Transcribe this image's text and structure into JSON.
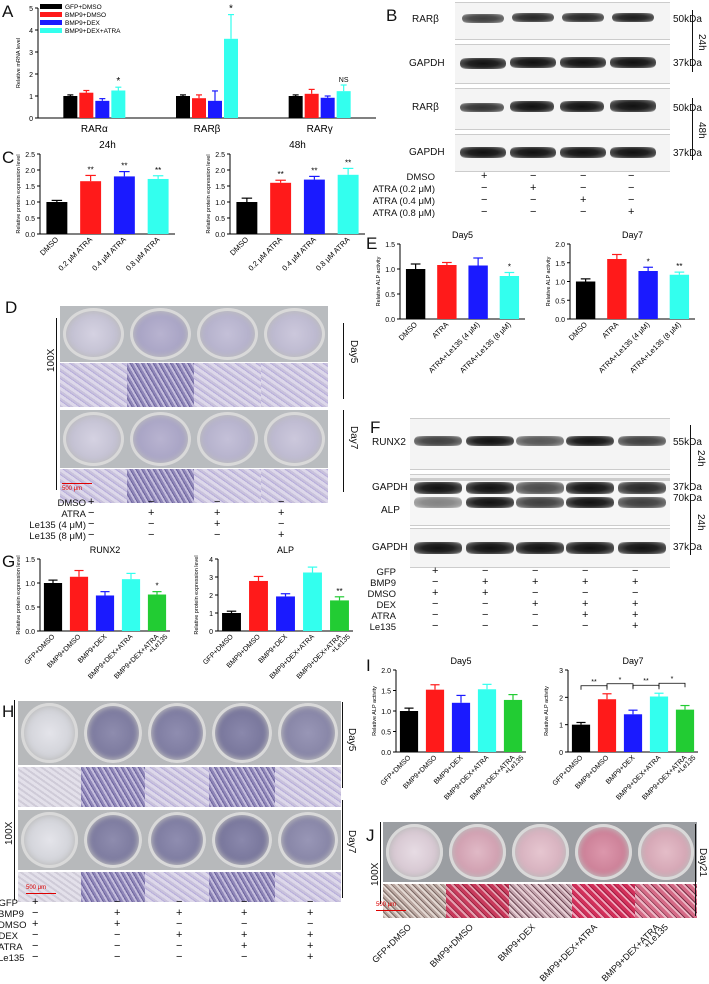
{
  "panels": {
    "A": "A",
    "B": "B",
    "C": "C",
    "D": "D",
    "E": "E",
    "F": "F",
    "G": "G",
    "H": "H",
    "I": "I",
    "J": "J"
  },
  "colors": {
    "black": "#000000",
    "red": "#ff1a1a",
    "blue": "#1a1aff",
    "cyan": "#33ffee",
    "green": "#22cc33"
  },
  "panelA": {
    "ylabel": "Relative mRNA level",
    "legend": [
      "GFP+DMSO",
      "BMP9+DMSO",
      "BMP9+DEX",
      "BMP9+DEX+ATRA"
    ],
    "chart_data": {
      "type": "bar",
      "categories": [
        "RARα",
        "RARβ",
        "RARγ"
      ],
      "ylim": [
        0,
        5
      ],
      "yticks": [
        "0",
        "1",
        "2",
        "3",
        "4",
        "5"
      ],
      "series": [
        {
          "name": "GFP+DMSO",
          "values": [
            1.0,
            1.0,
            1.0
          ],
          "err": [
            0.05,
            0.05,
            0.05
          ]
        },
        {
          "name": "BMP9+DMSO",
          "values": [
            1.15,
            0.9,
            1.1
          ],
          "err": [
            0.1,
            0.15,
            0.2
          ]
        },
        {
          "name": "BMP9+DEX",
          "values": [
            0.78,
            0.78,
            0.92
          ],
          "err": [
            0.1,
            0.45,
            0.08
          ]
        },
        {
          "name": "BMP9+DEX+ATRA",
          "values": [
            1.25,
            3.6,
            1.22
          ],
          "err": [
            0.15,
            1.1,
            0.28
          ]
        }
      ],
      "annotations": [
        "*",
        "*",
        "NS"
      ]
    }
  },
  "panelB": {
    "rows": [
      "RARβ",
      "GAPDH",
      "RARβ",
      "GAPDH"
    ],
    "kda": [
      "50kDa",
      "37kDa",
      "50kDa",
      "37kDa"
    ],
    "times": [
      "24h",
      "48h"
    ],
    "treatments": [
      "DMSO",
      "ATRA (0.2 μM)",
      "ATRA (0.4 μM)",
      "ATRA (0.8 μM)"
    ],
    "signs": [
      [
        "+",
        "−",
        "−",
        "−"
      ],
      [
        "−",
        "+",
        "−",
        "−"
      ],
      [
        "−",
        "−",
        "+",
        "−"
      ],
      [
        "−",
        "−",
        "−",
        "+"
      ]
    ]
  },
  "panelC": {
    "ylabel": "Relative protein expression level",
    "chart_data": [
      {
        "type": "bar",
        "title": "24h",
        "categories": [
          "DMSO",
          "0.2 μM ATRA",
          "0.4 μM ATRA",
          "0.8 μM ATRA"
        ],
        "values": [
          1.0,
          1.65,
          1.8,
          1.72
        ],
        "err": [
          0.05,
          0.18,
          0.15,
          0.1
        ],
        "ylim": [
          0,
          2.5
        ],
        "yticks": [
          "0.0",
          "0.5",
          "1.0",
          "1.5",
          "2.0",
          "2.5"
        ],
        "annotations": [
          "",
          "**",
          "**",
          "**"
        ]
      },
      {
        "type": "bar",
        "title": "48h",
        "categories": [
          "DMSO",
          "0.2 μM ATRA",
          "0.4 μM ATRA",
          "0.8 μM ATRA"
        ],
        "values": [
          1.0,
          1.6,
          1.7,
          1.85
        ],
        "err": [
          0.12,
          0.08,
          0.1,
          0.2
        ],
        "ylim": [
          0,
          2.5
        ],
        "yticks": [
          "0.0",
          "0.5",
          "1.0",
          "1.5",
          "2.0",
          "2.5"
        ],
        "annotations": [
          "",
          "**",
          "**",
          "**"
        ]
      }
    ]
  },
  "panelD": {
    "mag": "100X",
    "day5": "Day5",
    "day7": "Day7",
    "scale": "500 μm",
    "treatments": [
      "DMSO",
      "ATRA",
      "Le135 (4 μM)",
      "Le135 (8 μM)"
    ],
    "signs": [
      [
        "+",
        "−",
        "−",
        "−"
      ],
      [
        "−",
        "+",
        "+",
        "+"
      ],
      [
        "−",
        "−",
        "+",
        "−"
      ],
      [
        "−",
        "−",
        "−",
        "+"
      ]
    ]
  },
  "panelE": {
    "ylabel": "Relative ALP activity",
    "chart_data": [
      {
        "type": "bar",
        "title": "Day5",
        "categories": [
          "DMSO",
          "ATRA",
          "ATRA+Le135 (4 μM)",
          "ATRA+Le135 (8 μM)"
        ],
        "values": [
          1.0,
          1.08,
          1.07,
          0.86
        ],
        "err": [
          0.1,
          0.05,
          0.15,
          0.07
        ],
        "ylim": [
          0,
          1.5
        ],
        "yticks": [
          "0.0",
          "0.5",
          "1.0",
          "1.5"
        ],
        "annotations": [
          "",
          "",
          "",
          "*"
        ]
      },
      {
        "type": "bar",
        "title": "Day7",
        "categories": [
          "DMSO",
          "ATRA",
          "ATRA+Le135 (4 μM)",
          "ATRA+Le135 (8 μM)"
        ],
        "values": [
          1.0,
          1.6,
          1.28,
          1.18
        ],
        "err": [
          0.07,
          0.12,
          0.1,
          0.07
        ],
        "ylim": [
          0,
          2.0
        ],
        "yticks": [
          "0.0",
          "0.5",
          "1.0",
          "1.5",
          "2.0"
        ],
        "annotations": [
          "",
          "",
          "*",
          "**"
        ]
      }
    ]
  },
  "panelF": {
    "rows": [
      "RUNX2",
      "GAPDH",
      "ALP",
      "GAPDH"
    ],
    "kda": [
      "55kDa",
      "37kDa",
      "70kDa",
      "37kDa"
    ],
    "times": [
      "24h",
      "24h"
    ],
    "treatments": [
      "GFP",
      "BMP9",
      "DMSO",
      "DEX",
      "ATRA",
      "Le135"
    ],
    "signs": [
      [
        "+",
        "−",
        "−",
        "−",
        "−"
      ],
      [
        "−",
        "+",
        "+",
        "+",
        "+"
      ],
      [
        "+",
        "+",
        "−",
        "−",
        "−"
      ],
      [
        "−",
        "−",
        "+",
        "+",
        "+"
      ],
      [
        "−",
        "−",
        "−",
        "+",
        "+"
      ],
      [
        "−",
        "−",
        "−",
        "−",
        "+"
      ]
    ]
  },
  "panelG": {
    "ylabel": "Relative protein expression level",
    "categories": [
      "GFP+DMSO",
      "BMP9+DMSO",
      "BMP9+DEX",
      "BMP9+DEX+ATRA",
      "BMP9+DEX+ATRA\n+Le135"
    ],
    "chart_data": [
      {
        "type": "bar",
        "title": "RUNX2",
        "categories": [
          "GFP+DMSO",
          "BMP9+DMSO",
          "BMP9+DEX",
          "BMP9+DEX+ATRA",
          "BMP9+DEX+ATRA +Le135"
        ],
        "values": [
          1.0,
          1.13,
          0.74,
          1.08,
          0.76
        ],
        "err": [
          0.06,
          0.13,
          0.08,
          0.12,
          0.06
        ],
        "ylim": [
          0,
          1.5
        ],
        "yticks": [
          "0.0",
          "0.5",
          "1.0",
          "1.5"
        ],
        "annotations": [
          "",
          "",
          "",
          "",
          "*"
        ]
      },
      {
        "type": "bar",
        "title": "ALP",
        "categories": [
          "GFP+DMSO",
          "BMP9+DMSO",
          "BMP9+DEX",
          "BMP9+DEX+ATRA",
          "BMP9+DEX+ATRA +Le135"
        ],
        "values": [
          1.0,
          2.78,
          1.92,
          3.25,
          1.7
        ],
        "err": [
          0.1,
          0.25,
          0.15,
          0.3,
          0.2
        ],
        "ylim": [
          0,
          4
        ],
        "yticks": [
          "0",
          "1",
          "2",
          "3",
          "4"
        ],
        "annotations": [
          "",
          "",
          "",
          "",
          "**"
        ]
      }
    ]
  },
  "panelH": {
    "mag": "100X",
    "day5": "Day5",
    "day7": "Day7",
    "scale": "500 μm",
    "treatments": [
      "GFP",
      "BMP9",
      "DMSO",
      "DEX",
      "ATRA",
      "Le135"
    ],
    "signs": [
      [
        "+",
        "−",
        "−",
        "−",
        "−"
      ],
      [
        "−",
        "+",
        "+",
        "+",
        "+"
      ],
      [
        "+",
        "+",
        "−",
        "−",
        "−"
      ],
      [
        "−",
        "−",
        "+",
        "+",
        "+"
      ],
      [
        "−",
        "−",
        "−",
        "+",
        "+"
      ],
      [
        "−",
        "−",
        "−",
        "−",
        "+"
      ]
    ]
  },
  "panelI": {
    "ylabel": "Relative ALP activity",
    "chart_data": [
      {
        "type": "bar",
        "title": "Day5",
        "categories": [
          "GFP+DMSO",
          "BMP9+DMSO",
          "BMP9+DEX",
          "BMP9+DEX+ATRA",
          "BMP9+DEX+ATRA +Le135"
        ],
        "values": [
          1.0,
          1.52,
          1.2,
          1.53,
          1.27
        ],
        "err": [
          0.07,
          0.12,
          0.18,
          0.12,
          0.13
        ],
        "ylim": [
          0,
          2.0
        ],
        "yticks": [
          "0.0",
          "0.5",
          "1.0",
          "1.5",
          "2.0"
        ],
        "annotations": []
      },
      {
        "type": "bar",
        "title": "Day7",
        "categories": [
          "GFP+DMSO",
          "BMP9+DMSO",
          "BMP9+DEX",
          "BMP9+DEX+ATRA",
          "BMP9+DEX+ATRA +Le135"
        ],
        "values": [
          1.0,
          1.93,
          1.38,
          2.03,
          1.55
        ],
        "err": [
          0.08,
          0.2,
          0.15,
          0.12,
          0.15
        ],
        "ylim": [
          0,
          3
        ],
        "yticks": [
          "0",
          "1",
          "2",
          "3"
        ],
        "brackets": [
          [
            "**",
            0,
            1
          ],
          [
            "*",
            1,
            2
          ],
          [
            "**",
            2,
            3
          ],
          [
            "*",
            3,
            4
          ]
        ]
      }
    ]
  },
  "panelJ": {
    "mag": "100X",
    "day": "Day21",
    "scale": "500 μm",
    "labels": [
      "GFP+DMSO",
      "BMP9+DMSO",
      "BMP9+DEX",
      "BMP9+DEX+ATRA",
      "BMP9+DEX+ATRA\n+Le135"
    ]
  }
}
